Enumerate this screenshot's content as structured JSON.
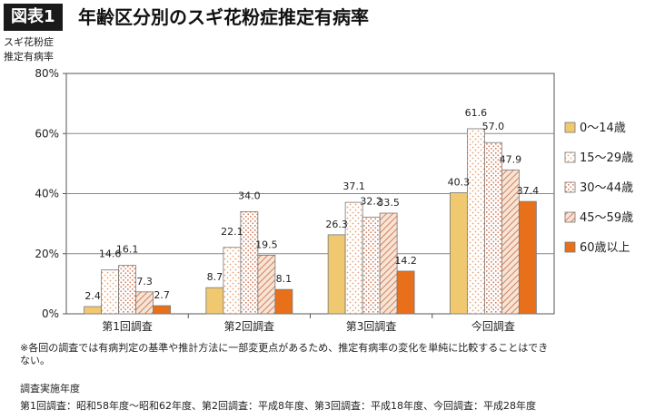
{
  "figure": {
    "badge": "図表1",
    "title": "年齢区分別のスギ花粉症推定有病率"
  },
  "chart_data": {
    "type": "bar",
    "ylabel_lines": [
      "スギ花粉症",
      "推定有病率"
    ],
    "ylim": [
      0,
      80
    ],
    "yticks": [
      "0%",
      "20%",
      "40%",
      "60%",
      "80%"
    ],
    "ytick_values": [
      0,
      20,
      40,
      60,
      80
    ],
    "categories": [
      "第1回調査",
      "第2回調査",
      "第3回調査",
      "今回調査"
    ],
    "series": [
      {
        "name": "0～14歳",
        "values": [
          2.4,
          8.7,
          26.3,
          40.3
        ],
        "labels": [
          "2.4",
          "8.7",
          "26.3",
          "40.3"
        ],
        "color": "#f0c870",
        "pattern": "solid"
      },
      {
        "name": "15～29歳",
        "values": [
          14.6,
          22.1,
          37.1,
          61.6
        ],
        "labels": [
          "14.6",
          "22.1",
          "37.1",
          "61.6"
        ],
        "color": "#e8a070",
        "pattern": "dots"
      },
      {
        "name": "30～44歳",
        "values": [
          16.1,
          34.0,
          32.2,
          57.0
        ],
        "labels": [
          "16.1",
          "34.0",
          "32.2",
          "57.0"
        ],
        "color": "#d08060",
        "pattern": "grid"
      },
      {
        "name": "45～59歳",
        "values": [
          7.3,
          19.5,
          33.5,
          47.9
        ],
        "labels": [
          "7.3",
          "19.5",
          "33.5",
          "47.9"
        ],
        "color": "#d89070",
        "pattern": "hatch"
      },
      {
        "name": "60歳以上",
        "values": [
          2.7,
          8.1,
          14.2,
          37.4
        ],
        "labels": [
          "2.7",
          "8.1",
          "14.2",
          "37.4"
        ],
        "color": "#e8701a",
        "pattern": "solid"
      }
    ],
    "grid": true,
    "legend": "right"
  },
  "notes": {
    "disclaimer_line1": "※各回の調査では有病判定の基準や推計方法に一部変更点があるため、推定有病率の変化を単純に比較することはでき",
    "disclaimer_line2": "ない。",
    "years_heading": "調査実施年度",
    "years_detail": "第1回調査：昭和58年度～昭和62年度、第2回調査：平成8年度、第3回調査：平成18年度、今回調査：平成28年度"
  }
}
